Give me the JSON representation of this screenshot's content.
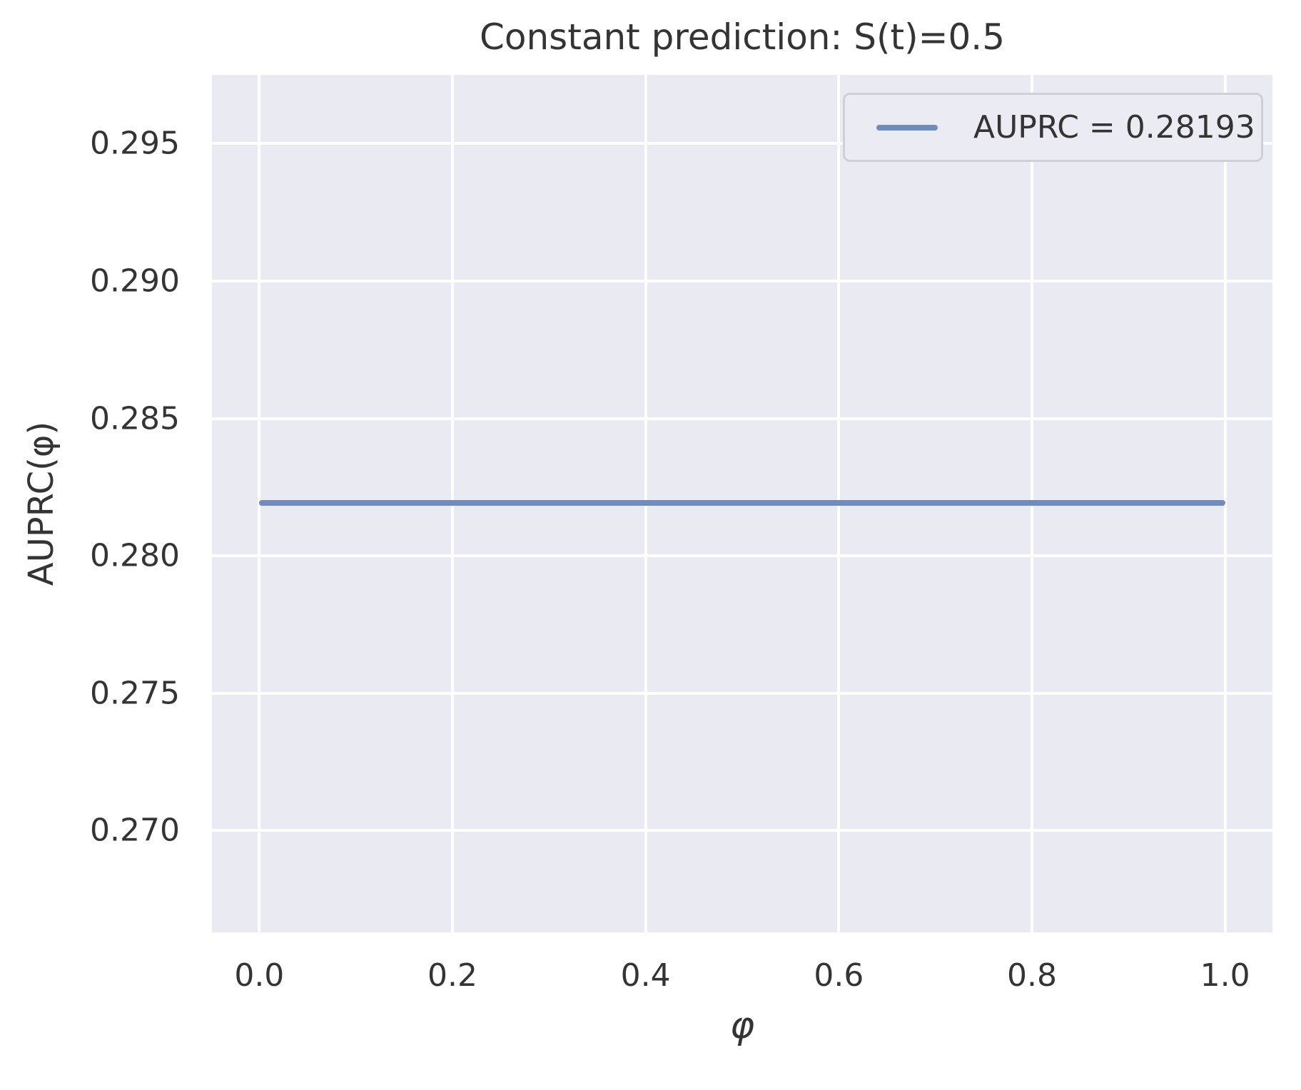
{
  "chart_data": {
    "type": "line",
    "title": "Constant prediction: S(t)=0.5",
    "xlabel": "φ",
    "ylabel": "AUPRC(φ)",
    "xlim": [
      -0.049,
      1.049
    ],
    "ylim": [
      0.2663,
      0.2975
    ],
    "xticks": [
      0.0,
      0.2,
      0.4,
      0.6,
      0.8,
      1.0
    ],
    "xtick_labels": [
      "0.0",
      "0.2",
      "0.4",
      "0.6",
      "0.8",
      "1.0"
    ],
    "yticks": [
      0.27,
      0.275,
      0.28,
      0.285,
      0.29,
      0.295
    ],
    "ytick_labels": [
      "0.270",
      "0.275",
      "0.280",
      "0.285",
      "0.290",
      "0.295"
    ],
    "grid": true,
    "legend": {
      "position": "upper right",
      "entries": [
        {
          "label": "AUPRC = 0.28193",
          "color": "#718bbf"
        }
      ]
    },
    "series": [
      {
        "name": "AUPRC = 0.28193",
        "x": [
          0.0,
          1.0
        ],
        "y": [
          0.28193,
          0.28193
        ],
        "color": "#718bbf"
      }
    ]
  },
  "colors": {
    "figure_bg": "#ffffff",
    "axes_bg": "#eaeaf2",
    "grid": "#ffffff",
    "line": "#718bbf",
    "text": "#343434",
    "legend_bg": "#ebebf3",
    "legend_border": "#cfcfd8"
  }
}
